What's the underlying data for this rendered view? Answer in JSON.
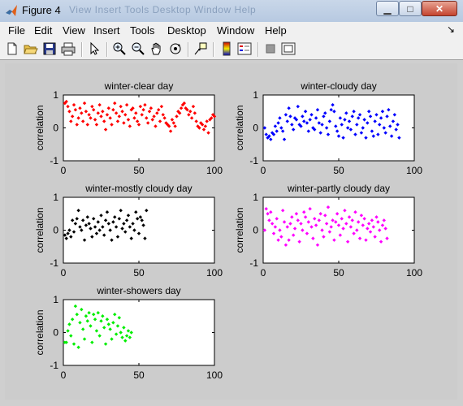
{
  "window": {
    "title": "Figure 4",
    "ghost_menu": "View   Insert   Tools   Desktop   Window   Help"
  },
  "menu": [
    "File",
    "Edit",
    "View",
    "Insert",
    "Tools",
    "Desktop",
    "Window",
    "Help"
  ],
  "menu_arrow": "↘",
  "toolbar_icons": [
    "new-figure-icon",
    "open-file-icon",
    "save-icon",
    "print-icon",
    "edit-plot-arrow-icon",
    "zoom-in-icon",
    "zoom-out-icon",
    "pan-hand-icon",
    "rotate-3d-icon",
    "data-cursor-icon",
    "insert-colorbar-icon",
    "insert-legend-icon",
    "hide-plot-tools-icon",
    "show-plot-tools-icon"
  ],
  "chart_data": [
    {
      "type": "scatter",
      "title": "winter-clear day",
      "ylabel": "correlation",
      "xlabel": "",
      "xlim": [
        0,
        100
      ],
      "ylim": [
        -1,
        1
      ],
      "xticks": [
        "0",
        "50",
        "100"
      ],
      "yticks": [
        "1",
        "0",
        "-1"
      ],
      "color": "#ff0000",
      "x": [
        1,
        2,
        3,
        4,
        5,
        6,
        7,
        8,
        9,
        10,
        11,
        12,
        13,
        14,
        15,
        16,
        17,
        18,
        19,
        20,
        21,
        22,
        23,
        24,
        25,
        26,
        27,
        28,
        29,
        30,
        31,
        32,
        33,
        34,
        35,
        36,
        37,
        38,
        39,
        40,
        41,
        42,
        43,
        44,
        45,
        46,
        47,
        48,
        49,
        50,
        51,
        52,
        53,
        54,
        55,
        56,
        57,
        58,
        59,
        60,
        61,
        62,
        63,
        64,
        65,
        66,
        67,
        68,
        69,
        70,
        71,
        72,
        73,
        74,
        75,
        76,
        77,
        78,
        79,
        80,
        81,
        82,
        83,
        84,
        85,
        86,
        87,
        88,
        89,
        90,
        91,
        92,
        93,
        94,
        95,
        96,
        97,
        98,
        99,
        100
      ],
      "y": [
        0.75,
        0.8,
        0.65,
        0.5,
        0.2,
        0.35,
        0.7,
        0.55,
        0.1,
        0.3,
        0.6,
        0.45,
        0.2,
        0.75,
        0.5,
        0.1,
        0.4,
        0.3,
        0.65,
        0.55,
        0.25,
        0.1,
        0.45,
        0.7,
        0.35,
        0.5,
        0.2,
        -0.05,
        0.4,
        0.6,
        0.3,
        0.1,
        0.55,
        0.75,
        0.45,
        0.2,
        0.35,
        0.65,
        0.5,
        0.15,
        0.4,
        0.7,
        0.25,
        0.05,
        0.55,
        0.6,
        0.3,
        0.45,
        0.2,
        0.1,
        0.65,
        0.4,
        0.55,
        0.7,
        0.3,
        0.15,
        0.5,
        0.6,
        0.25,
        0.35,
        0.05,
        0.45,
        0.55,
        0.2,
        0.65,
        0.4,
        0.3,
        0.15,
        0.1,
        0.05,
        -0.1,
        0.25,
        0.15,
        0.05,
        0.35,
        0.5,
        0.45,
        0.6,
        0.7,
        0.75,
        0.6,
        0.55,
        0.4,
        0.5,
        0.3,
        0.65,
        0.45,
        0.2,
        0.05,
        0.0,
        0.15,
        0.1,
        -0.05,
        0.05,
        0.2,
        -0.15,
        0.25,
        0.3,
        0.4,
        0.35
      ]
    },
    {
      "type": "scatter",
      "title": "winter-cloudy day",
      "ylabel": "correlation",
      "xlabel": "",
      "xlim": [
        0,
        100
      ],
      "ylim": [
        -1,
        1
      ],
      "xticks": [
        "0",
        "50",
        "100"
      ],
      "yticks": [
        "1",
        "0",
        "-1"
      ],
      "color": "#0000ff",
      "x": [
        1,
        2,
        3,
        4,
        5,
        6,
        7,
        8,
        9,
        10,
        11,
        12,
        13,
        14,
        15,
        16,
        17,
        18,
        19,
        20,
        21,
        22,
        23,
        24,
        25,
        26,
        27,
        28,
        29,
        30,
        31,
        32,
        33,
        34,
        35,
        36,
        37,
        38,
        39,
        40,
        41,
        42,
        43,
        44,
        45,
        46,
        47,
        48,
        49,
        50,
        51,
        52,
        53,
        54,
        55,
        56,
        57,
        58,
        59,
        60,
        61,
        62,
        63,
        64,
        65,
        66,
        67,
        68,
        69,
        70,
        71,
        72,
        73,
        74,
        75,
        76,
        77,
        78,
        79,
        80,
        81,
        82,
        83,
        84,
        85,
        86,
        87,
        88,
        89,
        90
      ],
      "y": [
        0.0,
        -0.2,
        -0.3,
        -0.25,
        -0.35,
        -0.15,
        -0.2,
        0.05,
        -0.1,
        0.15,
        0.3,
        0.0,
        -0.1,
        -0.35,
        0.4,
        0.2,
        0.6,
        0.35,
        0.1,
        -0.05,
        0.3,
        0.25,
        0.65,
        0.1,
        0.05,
        0.35,
        0.2,
        0.5,
        0.15,
        -0.1,
        0.25,
        0.4,
        0.0,
        -0.05,
        0.3,
        0.55,
        0.15,
        -0.15,
        0.1,
        0.35,
        0.45,
        0.0,
        -0.2,
        0.2,
        0.55,
        0.7,
        0.5,
        0.05,
        -0.1,
        -0.25,
        0.3,
        0.1,
        -0.3,
        0.25,
        0.45,
        0.0,
        0.2,
        -0.05,
        0.35,
        0.5,
        -0.2,
        0.1,
        0.3,
        0.4,
        -0.15,
        0.0,
        0.25,
        -0.3,
        0.15,
        0.5,
        0.35,
        -0.1,
        -0.25,
        0.2,
        0.4,
        -0.2,
        0.1,
        0.3,
        0.5,
        0.0,
        -0.15,
        0.35,
        0.55,
        0.05,
        -0.25,
        0.2,
        0.4,
        -0.05,
        0.1,
        -0.3
      ]
    },
    {
      "type": "scatter",
      "title": "winter-mostly cloudy day",
      "ylabel": "correlation",
      "xlabel": "",
      "xlim": [
        0,
        100
      ],
      "ylim": [
        -1,
        1
      ],
      "xticks": [
        "0",
        "50",
        "100"
      ],
      "yticks": [
        "1",
        "0",
        "-1"
      ],
      "color": "#000000",
      "x": [
        1,
        2,
        3,
        4,
        5,
        6,
        7,
        8,
        9,
        10,
        11,
        12,
        13,
        14,
        15,
        16,
        17,
        18,
        19,
        20,
        21,
        22,
        23,
        24,
        25,
        26,
        27,
        28,
        29,
        30,
        31,
        32,
        33,
        34,
        35,
        36,
        37,
        38,
        39,
        40,
        41,
        42,
        43,
        44,
        45,
        46,
        47,
        48,
        49,
        50,
        51,
        52,
        53,
        54,
        55
      ],
      "y": [
        -0.15,
        -0.25,
        -0.1,
        0.0,
        -0.2,
        0.3,
        -0.05,
        0.2,
        0.35,
        0.6,
        0.1,
        0.0,
        0.3,
        -0.3,
        0.15,
        0.4,
        0.2,
        0.05,
        -0.2,
        0.35,
        0.1,
        -0.1,
        0.25,
        0.0,
        0.45,
        0.1,
        -0.15,
        0.3,
        0.55,
        0.2,
        0.0,
        -0.3,
        0.25,
        0.4,
        0.1,
        -0.2,
        0.35,
        0.6,
        0.05,
        0.2,
        -0.05,
        0.3,
        0.45,
        0.1,
        -0.25,
        0.2,
        0.0,
        0.55,
        0.35,
        -0.1,
        0.4,
        0.3,
        0.15,
        -0.25,
        0.6
      ]
    },
    {
      "type": "scatter",
      "title": "winter-partly cloudy day",
      "ylabel": "correlation",
      "xlabel": "",
      "xlim": [
        0,
        100
      ],
      "ylim": [
        -1,
        1
      ],
      "xticks": [
        "0",
        "50",
        "100"
      ],
      "yticks": [
        "1",
        "0",
        "-1"
      ],
      "color": "#ff00ff",
      "x": [
        1,
        2,
        3,
        4,
        5,
        6,
        7,
        8,
        9,
        10,
        11,
        12,
        13,
        14,
        15,
        16,
        17,
        18,
        19,
        20,
        21,
        22,
        23,
        24,
        25,
        26,
        27,
        28,
        29,
        30,
        31,
        32,
        33,
        34,
        35,
        36,
        37,
        38,
        39,
        40,
        41,
        42,
        43,
        44,
        45,
        46,
        47,
        48,
        49,
        50,
        51,
        52,
        53,
        54,
        55,
        56,
        57,
        58,
        59,
        60,
        61,
        62,
        63,
        64,
        65,
        66,
        67,
        68,
        69,
        70,
        71,
        72,
        73,
        74,
        75,
        76,
        77,
        78,
        79,
        80,
        81,
        82
      ],
      "y": [
        0.0,
        0.65,
        0.5,
        0.3,
        0.55,
        0.2,
        -0.1,
        0.1,
        0.35,
        -0.3,
        0.0,
        -0.2,
        0.6,
        0.25,
        -0.45,
        0.1,
        -0.3,
        0.2,
        0.4,
        -0.15,
        0.05,
        0.5,
        0.3,
        -0.35,
        0.2,
        0.0,
        0.55,
        0.4,
        -0.1,
        0.25,
        0.65,
        0.1,
        -0.25,
        0.35,
        0.15,
        -0.45,
        0.3,
        0.5,
        0.0,
        -0.2,
        0.45,
        0.2,
        0.7,
        -0.05,
        0.1,
        0.3,
        -0.3,
        0.25,
        0.5,
        0.15,
        -0.15,
        0.35,
        0.05,
        0.6,
        0.2,
        -0.35,
        0.4,
        0.1,
        0.3,
        -0.1,
        0.55,
        0.0,
        0.25,
        -0.25,
        0.45,
        0.15,
        0.35,
        -0.3,
        0.05,
        0.2,
        -0.05,
        0.3,
        0.1,
        -0.2,
        0.4,
        0.25,
        0.0,
        -0.35,
        0.15,
        0.3,
        0.05,
        -0.25
      ]
    },
    {
      "type": "scatter",
      "title": "winter-showers day",
      "ylabel": "correlation",
      "xlabel": "",
      "xlim": [
        0,
        100
      ],
      "ylim": [
        -1,
        1
      ],
      "xticks": [
        "0",
        "50",
        "100"
      ],
      "yticks": [
        "1",
        "0",
        "-1"
      ],
      "color": "#00ee00",
      "x": [
        1,
        2,
        3,
        4,
        5,
        6,
        7,
        8,
        9,
        10,
        11,
        12,
        13,
        14,
        15,
        16,
        17,
        18,
        19,
        20,
        21,
        22,
        23,
        24,
        25,
        26,
        27,
        28,
        29,
        30,
        31,
        32,
        33,
        34,
        35,
        36,
        37,
        38,
        39,
        40,
        41,
        42,
        43,
        44,
        45
      ],
      "y": [
        -0.3,
        -0.3,
        0.05,
        0.25,
        -0.1,
        0.4,
        -0.35,
        0.8,
        0.55,
        -0.45,
        0.3,
        0.7,
        0.1,
        -0.2,
        0.5,
        0.35,
        0.6,
        0.2,
        -0.3,
        0.55,
        0.4,
        0.05,
        0.6,
        -0.1,
        0.35,
        0.5,
        0.15,
        -0.35,
        0.4,
        0.25,
        0.1,
        -0.2,
        0.3,
        0.55,
        -0.05,
        0.2,
        0.45,
        0.0,
        -0.15,
        0.15,
        -0.25,
        -0.1,
        0.05,
        -0.15,
        0.0
      ]
    }
  ]
}
